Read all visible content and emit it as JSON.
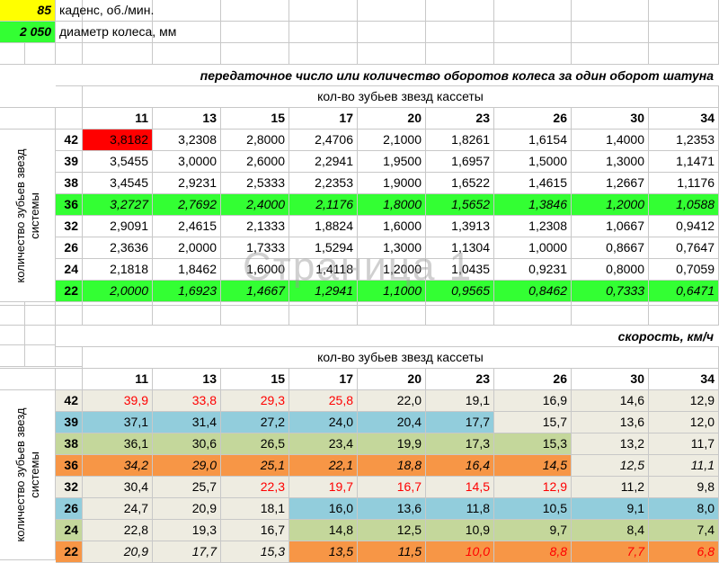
{
  "inputs": {
    "cadence": {
      "value": "85",
      "label": "каденс, об./мин."
    },
    "diameter": {
      "value": "2 050",
      "label": "диаметр колеса, мм"
    }
  },
  "table1": {
    "title": "передаточное число или количество оборотов колеса за один оборот шатуна",
    "subheader": "кол-во зубьев звезд кассеты",
    "side_label": "количество зубьев звезд системы",
    "columns": [
      "11",
      "13",
      "15",
      "17",
      "20",
      "23",
      "26",
      "30",
      "34"
    ],
    "rows": [
      {
        "gear": "42",
        "values": [
          "3,8182",
          "3,2308",
          "2,8000",
          "2,4706",
          "2,1000",
          "1,8261",
          "1,6154",
          "1,4000",
          "1,2353"
        ]
      },
      {
        "gear": "39",
        "values": [
          "3,5455",
          "3,0000",
          "2,6000",
          "2,2941",
          "1,9500",
          "1,6957",
          "1,5000",
          "1,3000",
          "1,1471"
        ]
      },
      {
        "gear": "38",
        "values": [
          "3,4545",
          "2,9231",
          "2,5333",
          "2,2353",
          "1,9000",
          "1,6522",
          "1,4615",
          "1,2667",
          "1,1176"
        ]
      },
      {
        "gear": "36",
        "values": [
          "3,2727",
          "2,7692",
          "2,4000",
          "2,1176",
          "1,8000",
          "1,5652",
          "1,3846",
          "1,2000",
          "1,0588"
        ]
      },
      {
        "gear": "32",
        "values": [
          "2,9091",
          "2,4615",
          "2,1333",
          "1,8824",
          "1,6000",
          "1,3913",
          "1,2308",
          "1,0667",
          "0,9412"
        ]
      },
      {
        "gear": "26",
        "values": [
          "2,3636",
          "2,0000",
          "1,7333",
          "1,5294",
          "1,3000",
          "1,1304",
          "1,0000",
          "0,8667",
          "0,7647"
        ]
      },
      {
        "gear": "24",
        "values": [
          "2,1818",
          "1,8462",
          "1,6000",
          "1,4118",
          "1,2000",
          "1,0435",
          "0,9231",
          "0,8000",
          "0,7059"
        ]
      },
      {
        "gear": "22",
        "values": [
          "2,0000",
          "1,6923",
          "1,4667",
          "1,2941",
          "1,1000",
          "0,9565",
          "0,8462",
          "0,7333",
          "0,6471"
        ]
      }
    ]
  },
  "table2": {
    "title": "скорость, км/ч",
    "subheader": "кол-во зубьев звезд кассеты",
    "side_label": "количество зубьев звезд системы",
    "columns": [
      "11",
      "13",
      "15",
      "17",
      "20",
      "23",
      "26",
      "30",
      "34"
    ],
    "rows": [
      {
        "gear": "42",
        "values": [
          "39,9",
          "33,8",
          "29,3",
          "25,8",
          "22,0",
          "19,1",
          "16,9",
          "14,6",
          "12,9"
        ]
      },
      {
        "gear": "39",
        "values": [
          "37,1",
          "31,4",
          "27,2",
          "24,0",
          "20,4",
          "17,7",
          "15,7",
          "13,6",
          "12,0"
        ]
      },
      {
        "gear": "38",
        "values": [
          "36,1",
          "30,6",
          "26,5",
          "23,4",
          "19,9",
          "17,3",
          "15,3",
          "13,2",
          "11,7"
        ]
      },
      {
        "gear": "36",
        "values": [
          "34,2",
          "29,0",
          "25,1",
          "22,1",
          "18,8",
          "16,4",
          "14,5",
          "12,5",
          "11,1"
        ]
      },
      {
        "gear": "32",
        "values": [
          "30,4",
          "25,7",
          "22,3",
          "19,7",
          "16,7",
          "14,5",
          "12,9",
          "11,2",
          "9,8"
        ]
      },
      {
        "gear": "26",
        "values": [
          "24,7",
          "20,9",
          "18,1",
          "16,0",
          "13,6",
          "11,8",
          "10,5",
          "9,1",
          "8,0"
        ]
      },
      {
        "gear": "24",
        "values": [
          "22,8",
          "19,3",
          "16,7",
          "14,8",
          "12,5",
          "10,9",
          "9,7",
          "8,4",
          "7,4"
        ]
      },
      {
        "gear": "22",
        "values": [
          "20,9",
          "17,7",
          "15,3",
          "13,5",
          "11,5",
          "10,0",
          "8,8",
          "7,7",
          "6,8"
        ]
      }
    ]
  },
  "watermark": "Страница 1",
  "colors": {
    "yellow": "#ffff00",
    "bright_green": "#33ff33",
    "red_cell": "#ff0000",
    "blue": "#92cddc",
    "olive_green": "#c4d79b",
    "orange": "#f79646",
    "beige": "#eeece1",
    "red_text": "#ff0000"
  }
}
